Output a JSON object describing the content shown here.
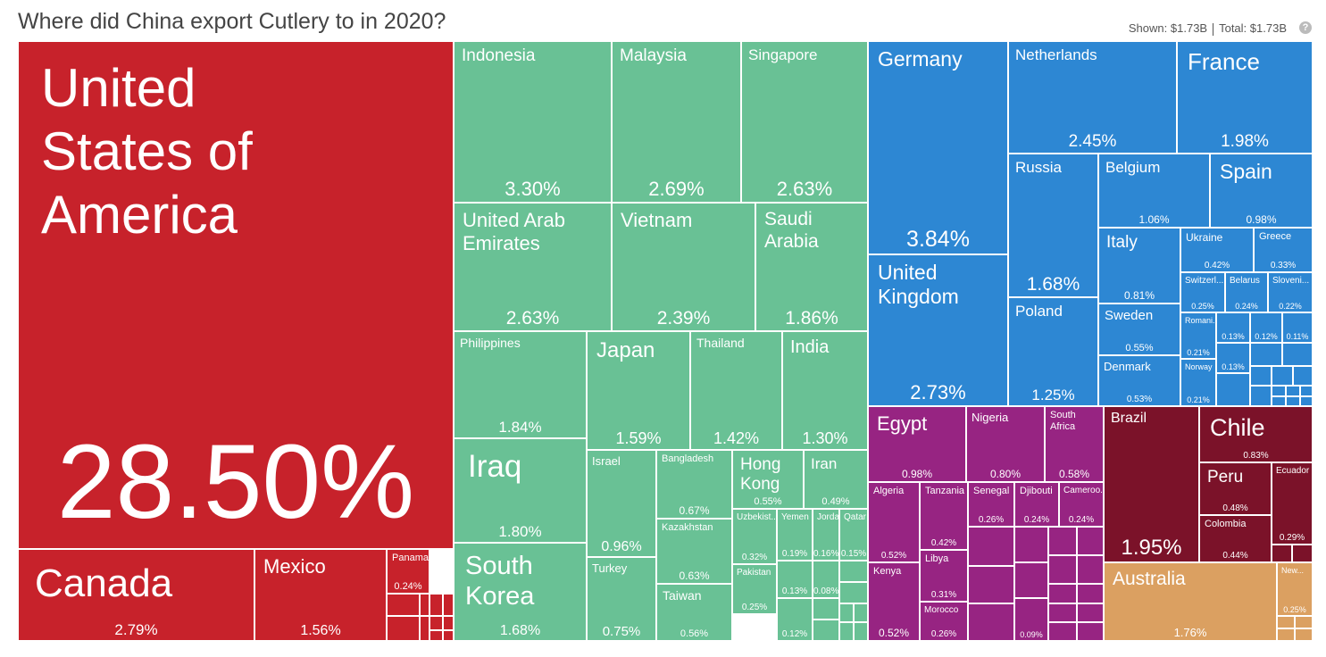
{
  "header": {
    "title": "Where did China export Cutlery to in 2020?",
    "shown_label": "Shown:",
    "shown_value": "$1.73B",
    "total_label": "Total:",
    "total_value": "$1.73B",
    "info_icon": "info-icon"
  },
  "colors": {
    "north_america": "#c7222b",
    "asia": "#69c195",
    "europe": "#2d87d3",
    "africa": "#972482",
    "south_america": "#7b1229",
    "oceania": "#dba061"
  },
  "chart_data": {
    "type": "treemap",
    "title": "Where did China export Cutlery to in 2020?",
    "total": "$1.73B",
    "tiles": [
      {
        "name": "United States of America",
        "label": "United\nStates of\nAmerica",
        "value": 28.5,
        "pct": "28.50%",
        "region": "north_america"
      },
      {
        "name": "Canada",
        "label": "Canada",
        "value": 2.79,
        "pct": "2.79%",
        "region": "north_america"
      },
      {
        "name": "Mexico",
        "label": "Mexico",
        "value": 1.56,
        "pct": "1.56%",
        "region": "north_america"
      },
      {
        "name": "Panama",
        "label": "Panama",
        "value": 0.24,
        "pct": "0.24%",
        "region": "north_america"
      },
      {
        "name": "Indonesia",
        "label": "Indonesia",
        "value": 3.3,
        "pct": "3.30%",
        "region": "asia"
      },
      {
        "name": "Malaysia",
        "label": "Malaysia",
        "value": 2.69,
        "pct": "2.69%",
        "region": "asia"
      },
      {
        "name": "Singapore",
        "label": "Singapore",
        "value": 2.63,
        "pct": "2.63%",
        "region": "asia"
      },
      {
        "name": "United Arab Emirates",
        "label": "United Arab\nEmirates",
        "value": 2.63,
        "pct": "2.63%",
        "region": "asia"
      },
      {
        "name": "Vietnam",
        "label": "Vietnam",
        "value": 2.39,
        "pct": "2.39%",
        "region": "asia"
      },
      {
        "name": "Saudi Arabia",
        "label": "Saudi\nArabia",
        "value": 1.86,
        "pct": "1.86%",
        "region": "asia"
      },
      {
        "name": "Philippines",
        "label": "Philippines",
        "value": 1.84,
        "pct": "1.84%",
        "region": "asia"
      },
      {
        "name": "Japan",
        "label": "Japan",
        "value": 1.59,
        "pct": "1.59%",
        "region": "asia"
      },
      {
        "name": "Thailand",
        "label": "Thailand",
        "value": 1.42,
        "pct": "1.42%",
        "region": "asia"
      },
      {
        "name": "India",
        "label": "India",
        "value": 1.3,
        "pct": "1.30%",
        "region": "asia"
      },
      {
        "name": "Iraq",
        "label": "Iraq",
        "value": 1.8,
        "pct": "1.80%",
        "region": "asia"
      },
      {
        "name": "South Korea",
        "label": "South\nKorea",
        "value": 1.68,
        "pct": "1.68%",
        "region": "asia"
      },
      {
        "name": "Israel",
        "label": "Israel",
        "value": 0.96,
        "pct": "0.96%",
        "region": "asia"
      },
      {
        "name": "Turkey",
        "label": "Turkey",
        "value": 0.75,
        "pct": "0.75%",
        "region": "asia"
      },
      {
        "name": "Bangladesh",
        "label": "Bangladesh",
        "value": 0.67,
        "pct": "0.67%",
        "region": "asia"
      },
      {
        "name": "Kazakhstan",
        "label": "Kazakhstan",
        "value": 0.63,
        "pct": "0.63%",
        "region": "asia"
      },
      {
        "name": "Taiwan",
        "label": "Taiwan",
        "value": 0.56,
        "pct": "0.56%",
        "region": "asia"
      },
      {
        "name": "Hong Kong",
        "label": "Hong\nKong",
        "value": 0.55,
        "pct": "0.55%",
        "region": "asia"
      },
      {
        "name": "Iran",
        "label": "Iran",
        "value": 0.49,
        "pct": "0.49%",
        "region": "asia"
      },
      {
        "name": "Uzbekistan",
        "label": "Uzbekist...",
        "value": 0.32,
        "pct": "0.32%",
        "region": "asia"
      },
      {
        "name": "Pakistan",
        "label": "Pakistan",
        "value": 0.25,
        "pct": "0.25%",
        "region": "asia"
      },
      {
        "name": "Yemen",
        "label": "Yemen",
        "value": 0.19,
        "pct": "0.19%",
        "region": "asia"
      },
      {
        "name": "Jordan",
        "label": "Jorda...",
        "value": 0.16,
        "pct": "0.16%",
        "region": "asia"
      },
      {
        "name": "Qatar",
        "label": "Qatar",
        "value": 0.15,
        "pct": "0.15%",
        "region": "asia"
      },
      {
        "name": "Asia (small 1)",
        "label": "",
        "value": 0.13,
        "pct": "0.13%",
        "region": "asia"
      },
      {
        "name": "Asia (small 2)",
        "label": "",
        "value": 0.12,
        "pct": "0.12%",
        "region": "asia"
      },
      {
        "name": "Asia (small 3)",
        "label": "",
        "value": 0.08,
        "pct": "0.08%",
        "region": "asia"
      },
      {
        "name": "Germany",
        "label": "Germany",
        "value": 3.84,
        "pct": "3.84%",
        "region": "europe"
      },
      {
        "name": "United Kingdom",
        "label": "United\nKingdom",
        "value": 2.73,
        "pct": "2.73%",
        "region": "europe"
      },
      {
        "name": "Netherlands",
        "label": "Netherlands",
        "value": 2.45,
        "pct": "2.45%",
        "region": "europe"
      },
      {
        "name": "France",
        "label": "France",
        "value": 1.98,
        "pct": "1.98%",
        "region": "europe"
      },
      {
        "name": "Russia",
        "label": "Russia",
        "value": 1.68,
        "pct": "1.68%",
        "region": "europe"
      },
      {
        "name": "Belgium",
        "label": "Belgium",
        "value": 1.06,
        "pct": "1.06%",
        "region": "europe"
      },
      {
        "name": "Spain",
        "label": "Spain",
        "value": 0.98,
        "pct": "0.98%",
        "region": "europe"
      },
      {
        "name": "Italy",
        "label": "Italy",
        "value": 0.81,
        "pct": "0.81%",
        "region": "europe"
      },
      {
        "name": "Ukraine",
        "label": "Ukraine",
        "value": 0.42,
        "pct": "0.42%",
        "region": "europe"
      },
      {
        "name": "Greece",
        "label": "Greece",
        "value": 0.33,
        "pct": "0.33%",
        "region": "europe"
      },
      {
        "name": "Poland",
        "label": "Poland",
        "value": 1.25,
        "pct": "1.25%",
        "region": "europe"
      },
      {
        "name": "Sweden",
        "label": "Sweden",
        "value": 0.55,
        "pct": "0.55%",
        "region": "europe"
      },
      {
        "name": "Denmark",
        "label": "Denmark",
        "value": 0.53,
        "pct": "0.53%",
        "region": "europe"
      },
      {
        "name": "Switzerland",
        "label": "Switzerl...",
        "value": 0.25,
        "pct": "0.25%",
        "region": "europe"
      },
      {
        "name": "Belarus",
        "label": "Belarus",
        "value": 0.24,
        "pct": "0.24%",
        "region": "europe"
      },
      {
        "name": "Slovenia",
        "label": "Sloveni...",
        "value": 0.22,
        "pct": "0.22%",
        "region": "europe"
      },
      {
        "name": "Romania",
        "label": "Romani...",
        "value": 0.21,
        "pct": "0.21%",
        "region": "europe"
      },
      {
        "name": "Norway",
        "label": "Norway",
        "value": 0.21,
        "pct": "0.21%",
        "region": "europe"
      },
      {
        "name": "Europe (small 1)",
        "label": "",
        "value": 0.13,
        "pct": "0.13%",
        "region": "europe"
      },
      {
        "name": "Europe (small 2)",
        "label": "",
        "value": 0.13,
        "pct": "0.13%",
        "region": "europe"
      },
      {
        "name": "Europe (small 3)",
        "label": "",
        "value": 0.12,
        "pct": "0.12%",
        "region": "europe"
      },
      {
        "name": "Europe (small 4)",
        "label": "",
        "value": 0.11,
        "pct": "0.11%",
        "region": "europe"
      },
      {
        "name": "Egypt",
        "label": "Egypt",
        "value": 0.98,
        "pct": "0.98%",
        "region": "africa"
      },
      {
        "name": "Nigeria",
        "label": "Nigeria",
        "value": 0.8,
        "pct": "0.80%",
        "region": "africa"
      },
      {
        "name": "South Africa",
        "label": "South\nAfrica",
        "value": 0.58,
        "pct": "0.58%",
        "region": "africa"
      },
      {
        "name": "Algeria",
        "label": "Algeria",
        "value": 0.52,
        "pct": "0.52%",
        "region": "africa"
      },
      {
        "name": "Kenya",
        "label": "Kenya",
        "value": 0.52,
        "pct": "0.52%",
        "region": "africa"
      },
      {
        "name": "Tanzania",
        "label": "Tanzania",
        "value": 0.42,
        "pct": "0.42%",
        "region": "africa"
      },
      {
        "name": "Libya",
        "label": "Libya",
        "value": 0.31,
        "pct": "0.31%",
        "region": "africa"
      },
      {
        "name": "Morocco",
        "label": "Morocco",
        "value": 0.26,
        "pct": "0.26%",
        "region": "africa"
      },
      {
        "name": "Senegal",
        "label": "Senegal",
        "value": 0.26,
        "pct": "0.26%",
        "region": "africa"
      },
      {
        "name": "Djibouti",
        "label": "Djibouti",
        "value": 0.24,
        "pct": "0.24%",
        "region": "africa"
      },
      {
        "name": "Cameroon",
        "label": "Cameroo...",
        "value": 0.24,
        "pct": "0.24%",
        "region": "africa"
      },
      {
        "name": "Africa (small 1)",
        "label": "",
        "value": 0.09,
        "pct": "0.09%",
        "region": "africa"
      },
      {
        "name": "Brazil",
        "label": "Brazil",
        "value": 1.95,
        "pct": "1.95%",
        "region": "south_america"
      },
      {
        "name": "Chile",
        "label": "Chile",
        "value": 0.83,
        "pct": "0.83%",
        "region": "south_america"
      },
      {
        "name": "Peru",
        "label": "Peru",
        "value": 0.48,
        "pct": "0.48%",
        "region": "south_america"
      },
      {
        "name": "Ecuador",
        "label": "Ecuador",
        "value": 0.29,
        "pct": "0.29%",
        "region": "south_america"
      },
      {
        "name": "Colombia",
        "label": "Colombia",
        "value": 0.44,
        "pct": "0.44%",
        "region": "south_america"
      },
      {
        "name": "Australia",
        "label": "Australia",
        "value": 1.76,
        "pct": "1.76%",
        "region": "oceania"
      },
      {
        "name": "New Zealand",
        "label": "New...",
        "value": 0.25,
        "pct": "0.25%",
        "region": "oceania"
      }
    ]
  }
}
